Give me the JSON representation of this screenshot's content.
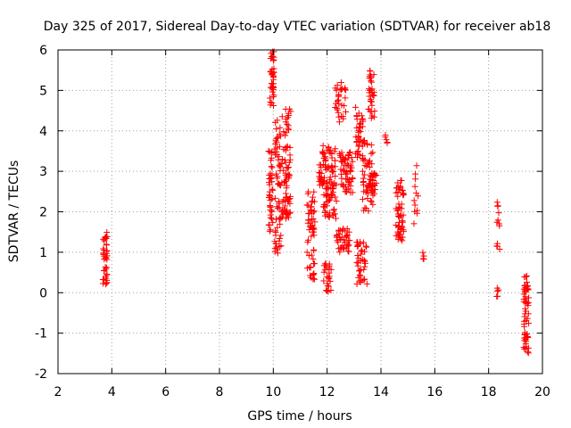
{
  "chart_data": {
    "type": "scatter",
    "title": "Day 325 of 2017, Sidereal Day-to-day VTEC variation (SDTVAR) for receiver ab18",
    "xlabel": "GPS time / hours",
    "ylabel": "SDTVAR / TECUs",
    "xlim": [
      2,
      20
    ],
    "ylim": [
      -2,
      6
    ],
    "xticks": [
      "2",
      "4",
      "6",
      "8",
      "10",
      "12",
      "14",
      "16",
      "18",
      "20"
    ],
    "yticks": [
      "-2",
      "-1",
      "0",
      "1",
      "2",
      "3",
      "4",
      "5",
      "6"
    ],
    "grid": true,
    "marker": "+",
    "color": "#ff0000",
    "clusters": [
      {
        "x": 3.75,
        "xspread": 0.08,
        "ymin": 0.2,
        "ymax": 1.5,
        "n": 40
      },
      {
        "x": 9.95,
        "xspread": 0.08,
        "ymin": 4.6,
        "ymax": 6.0,
        "n": 40
      },
      {
        "x": 9.9,
        "xspread": 0.08,
        "ymin": 1.5,
        "ymax": 3.5,
        "n": 40
      },
      {
        "x": 10.2,
        "xspread": 0.15,
        "ymin": 0.9,
        "ymax": 4.5,
        "n": 70
      },
      {
        "x": 10.5,
        "xspread": 0.15,
        "ymin": 1.8,
        "ymax": 4.6,
        "n": 70
      },
      {
        "x": 11.4,
        "xspread": 0.15,
        "ymin": 0.3,
        "ymax": 2.5,
        "n": 60
      },
      {
        "x": 11.8,
        "xspread": 0.1,
        "ymin": 2.5,
        "ymax": 3.5,
        "n": 20
      },
      {
        "x": 12.0,
        "xspread": 0.15,
        "ymin": 0.0,
        "ymax": 0.8,
        "n": 25
      },
      {
        "x": 12.1,
        "xspread": 0.25,
        "ymin": 1.8,
        "ymax": 3.7,
        "n": 90
      },
      {
        "x": 12.5,
        "xspread": 0.2,
        "ymin": 4.2,
        "ymax": 5.2,
        "n": 30
      },
      {
        "x": 12.6,
        "xspread": 0.25,
        "ymin": 1.0,
        "ymax": 1.6,
        "n": 40
      },
      {
        "x": 12.7,
        "xspread": 0.25,
        "ymin": 2.4,
        "ymax": 3.5,
        "n": 60
      },
      {
        "x": 13.2,
        "xspread": 0.15,
        "ymin": 3.3,
        "ymax": 4.6,
        "n": 40
      },
      {
        "x": 13.3,
        "xspread": 0.2,
        "ymin": 0.2,
        "ymax": 1.3,
        "n": 40
      },
      {
        "x": 13.5,
        "xspread": 0.2,
        "ymin": 2.0,
        "ymax": 3.8,
        "n": 50
      },
      {
        "x": 13.65,
        "xspread": 0.12,
        "ymin": 4.3,
        "ymax": 5.5,
        "n": 35
      },
      {
        "x": 13.7,
        "xspread": 0.15,
        "ymin": 2.4,
        "ymax": 3.0,
        "n": 30
      },
      {
        "x": 14.2,
        "xspread": 0.05,
        "ymin": 3.7,
        "ymax": 4.0,
        "n": 5
      },
      {
        "x": 14.7,
        "xspread": 0.15,
        "ymin": 1.2,
        "ymax": 2.8,
        "n": 60
      },
      {
        "x": 15.3,
        "xspread": 0.08,
        "ymin": 1.6,
        "ymax": 3.3,
        "n": 12
      },
      {
        "x": 15.6,
        "xspread": 0.05,
        "ymin": 0.7,
        "ymax": 1.0,
        "n": 4
      },
      {
        "x": 18.35,
        "xspread": 0.06,
        "ymin": 1.0,
        "ymax": 2.4,
        "n": 12
      },
      {
        "x": 18.35,
        "xspread": 0.06,
        "ymin": -0.1,
        "ymax": 0.2,
        "n": 5
      },
      {
        "x": 19.4,
        "xspread": 0.1,
        "ymin": -1.5,
        "ymax": 0.5,
        "n": 60
      }
    ]
  }
}
